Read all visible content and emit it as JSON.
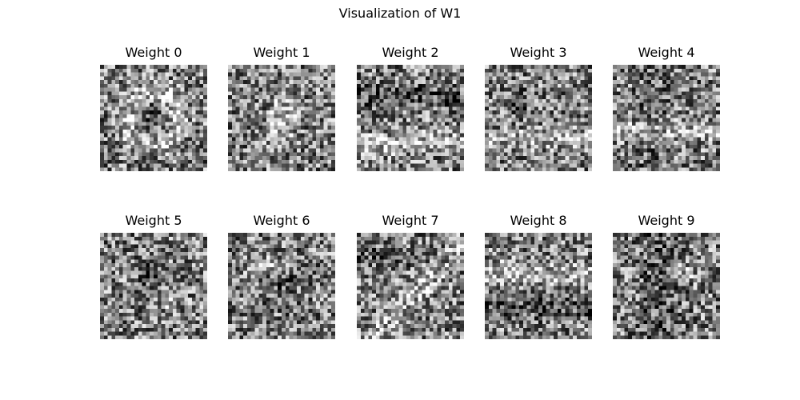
{
  "chart_data": {
    "type": "heatmap",
    "title": "Visualization of W1",
    "colormap": "gray",
    "grid_shape": [
      28,
      28
    ],
    "layout": {
      "rows": 2,
      "cols": 5
    },
    "panels": [
      {
        "title": "Weight 0"
      },
      {
        "title": "Weight 1"
      },
      {
        "title": "Weight 2"
      },
      {
        "title": "Weight 3"
      },
      {
        "title": "Weight 4"
      },
      {
        "title": "Weight 5"
      },
      {
        "title": "Weight 6"
      },
      {
        "title": "Weight 7"
      },
      {
        "title": "Weight 8"
      },
      {
        "title": "Weight 9"
      }
    ]
  }
}
